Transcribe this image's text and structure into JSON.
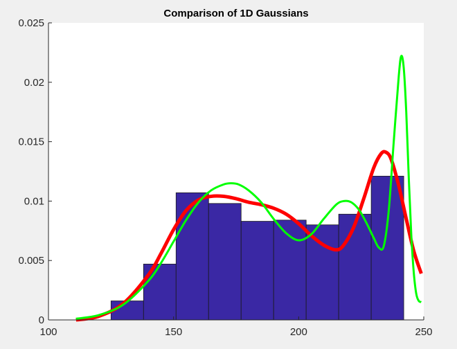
{
  "chart_data": {
    "type": "bar",
    "title": "Comparison of 1D Gaussians",
    "xlabel": "",
    "ylabel": "",
    "xlim": [
      100,
      250
    ],
    "ylim": [
      0,
      0.025
    ],
    "xticks": [
      100,
      150,
      200,
      250
    ],
    "xtick_labels": [
      "100",
      "150",
      "200",
      "250"
    ],
    "yticks": [
      0,
      0.005,
      0.01,
      0.015,
      0.02,
      0.025
    ],
    "ytick_labels": [
      "0",
      "0.005",
      "0.01",
      "0.015",
      "0.02",
      "0.025"
    ],
    "grid": false,
    "histogram": {
      "color": "#3a28a4",
      "bins": [
        {
          "x0": 125,
          "x1": 138,
          "value": 0.0016
        },
        {
          "x0": 138,
          "x1": 151,
          "value": 0.0047
        },
        {
          "x0": 151,
          "x1": 164,
          "value": 0.0107
        },
        {
          "x0": 164,
          "x1": 177,
          "value": 0.0098
        },
        {
          "x0": 177,
          "x1": 190,
          "value": 0.0083
        },
        {
          "x0": 190,
          "x1": 203,
          "value": 0.0084
        },
        {
          "x0": 203,
          "x1": 216,
          "value": 0.008
        },
        {
          "x0": 216,
          "x1": 229,
          "value": 0.0089
        },
        {
          "x0": 229,
          "x1": 242,
          "value": 0.0121
        }
      ]
    },
    "series": [
      {
        "color": "#ff0000",
        "width": 5,
        "x": [
          111,
          120,
          130,
          140,
          145,
          150,
          155,
          160,
          165,
          170,
          175,
          180,
          185,
          190,
          195,
          200,
          205,
          210,
          215,
          218,
          222,
          226,
          230,
          233,
          235,
          237,
          240,
          243,
          246,
          249
        ],
        "y": [
          0.0,
          0.0003,
          0.0014,
          0.0038,
          0.0056,
          0.0076,
          0.0092,
          0.0101,
          0.0104,
          0.0104,
          0.0102,
          0.0099,
          0.0097,
          0.0094,
          0.0089,
          0.0081,
          0.0071,
          0.0063,
          0.0059,
          0.0063,
          0.0078,
          0.0102,
          0.0128,
          0.014,
          0.0141,
          0.0135,
          0.0113,
          0.0085,
          0.0058,
          0.0039
        ]
      },
      {
        "color": "#00ff00",
        "width": 3,
        "x": [
          111,
          120,
          130,
          140,
          145,
          150,
          155,
          160,
          165,
          170,
          173,
          176,
          180,
          185,
          190,
          195,
          200,
          205,
          210,
          215,
          218,
          221,
          224,
          227,
          230,
          232,
          234,
          236,
          238,
          240,
          241,
          242,
          243,
          244,
          245,
          246,
          247,
          248,
          249
        ],
        "y": [
          0.0001,
          0.0004,
          0.0013,
          0.0033,
          0.0048,
          0.0066,
          0.0084,
          0.0099,
          0.0109,
          0.0114,
          0.0115,
          0.0114,
          0.0109,
          0.0099,
          0.0085,
          0.0073,
          0.0067,
          0.0072,
          0.0085,
          0.0097,
          0.01,
          0.0099,
          0.0093,
          0.0082,
          0.0069,
          0.0061,
          0.0062,
          0.0092,
          0.015,
          0.0205,
          0.0222,
          0.0212,
          0.0175,
          0.012,
          0.0072,
          0.004,
          0.0022,
          0.0016,
          0.0015
        ]
      }
    ]
  }
}
